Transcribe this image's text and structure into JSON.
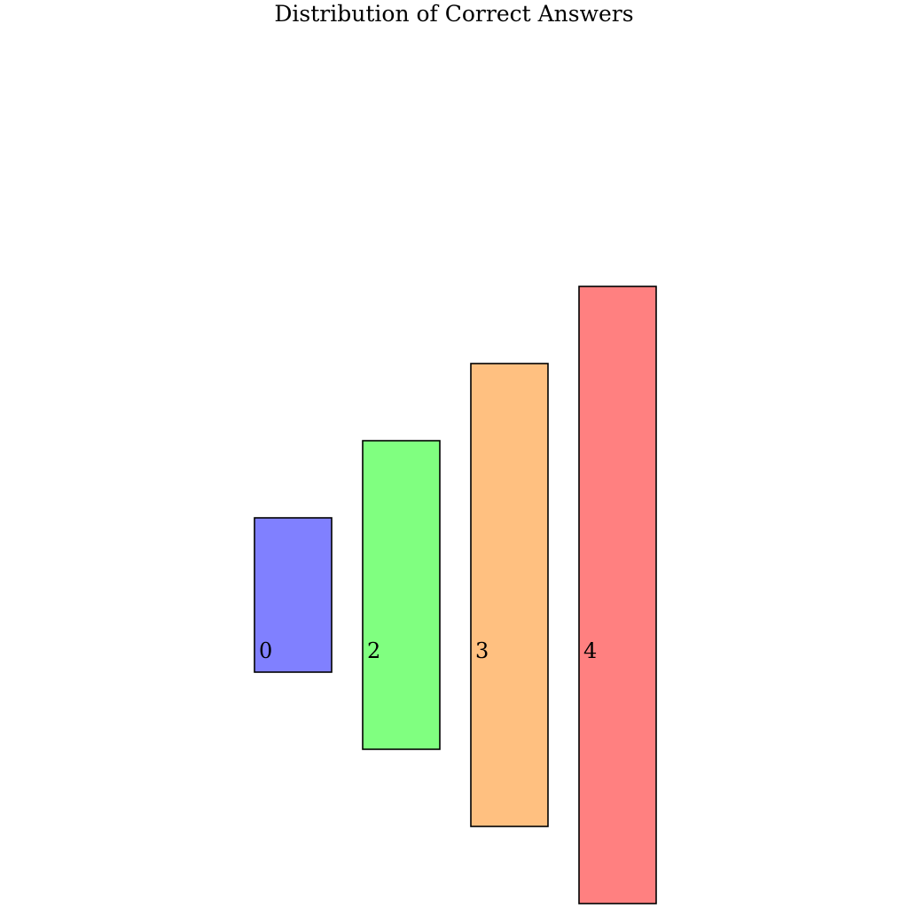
{
  "chart_data": {
    "type": "bar",
    "title": "Distribution of Correct Answers",
    "categories": [
      "0",
      "2",
      "3",
      "4"
    ],
    "values": [
      2,
      4,
      6,
      8
    ],
    "colors": [
      "#8080ff",
      "#80ff80",
      "#ffc080",
      "#ff8080"
    ],
    "xlabel": "",
    "ylabel": "",
    "grid": false,
    "legend": false
  }
}
